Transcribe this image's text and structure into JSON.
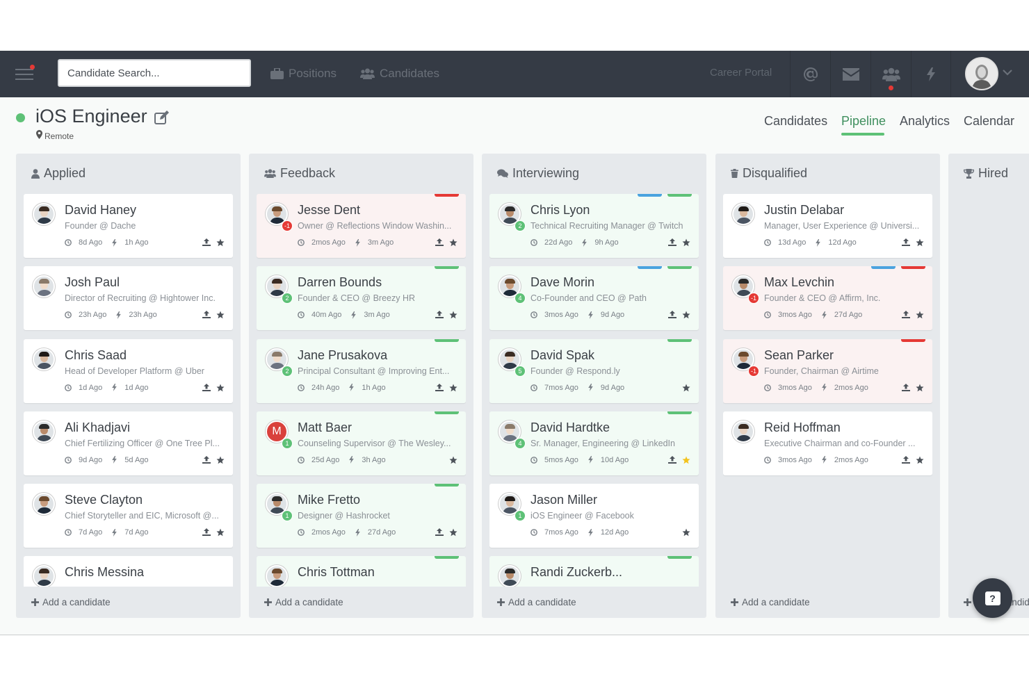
{
  "topbar": {
    "search_placeholder": "Candidate Search...",
    "nav": {
      "positions": "Positions",
      "candidates": "Candidates"
    },
    "career_portal": "Career Portal",
    "icons": [
      "at-icon",
      "envelope-icon",
      "team-icon",
      "bolt-icon"
    ]
  },
  "position": {
    "title": "iOS Engineer",
    "location": "Remote",
    "status_color": "#5ec177"
  },
  "tabs": [
    "Candidates",
    "Pipeline",
    "Analytics",
    "Calendar"
  ],
  "active_tab": "Pipeline",
  "add_label": "Add a candidate",
  "colors": {
    "green_tag": "#5ec177",
    "red_tag": "#e53935",
    "blue_tag": "#4aa3df",
    "dark": "#353b45"
  },
  "columns": [
    {
      "id": "applied",
      "title": "Applied",
      "icon": "user-icon",
      "cards": [
        {
          "name": "David Haney",
          "role": "Founder @ Dache",
          "created": "8d Ago",
          "activity": "1h Ago",
          "bg": "white",
          "tags": [],
          "score": null,
          "upload": true,
          "star": "normal"
        },
        {
          "name": "Josh Paul",
          "role": "Director of Recruiting @ Hightower Inc.",
          "created": "23h Ago",
          "activity": "23h Ago",
          "bg": "white",
          "tags": [],
          "score": null,
          "upload": true,
          "star": "normal"
        },
        {
          "name": "Chris Saad",
          "role": "Head of Developer Platform @ Uber",
          "created": "1d Ago",
          "activity": "1d Ago",
          "bg": "white",
          "tags": [],
          "score": null,
          "upload": true,
          "star": "normal"
        },
        {
          "name": "Ali Khadjavi",
          "role": "Chief Fertilizing Officer @ One Tree Pl...",
          "created": "9d Ago",
          "activity": "5d Ago",
          "bg": "white",
          "tags": [],
          "score": null,
          "upload": true,
          "star": "normal"
        },
        {
          "name": "Steve Clayton",
          "role": "Chief Storyteller and EIC, Microsoft @...",
          "created": "7d Ago",
          "activity": "7d Ago",
          "bg": "white",
          "tags": [],
          "score": null,
          "upload": true,
          "star": "normal"
        },
        {
          "name": "Chris Messina",
          "role": "",
          "created": "",
          "activity": "",
          "bg": "white",
          "tags": [],
          "score": null,
          "upload": true,
          "star": "normal"
        }
      ]
    },
    {
      "id": "feedback",
      "title": "Feedback",
      "icon": "team-icon",
      "cards": [
        {
          "name": "Jesse Dent",
          "role": "Owner @ Reflections Window Washin...",
          "created": "2mos Ago",
          "activity": "3m Ago",
          "bg": "red",
          "tags": [
            "red"
          ],
          "score": "-1",
          "upload": true,
          "star": "normal"
        },
        {
          "name": "Darren Bounds",
          "role": "Founder & CEO @ Breezy HR",
          "created": "40m Ago",
          "activity": "3m Ago",
          "bg": "green",
          "tags": [
            "green"
          ],
          "score": "2",
          "upload": true,
          "star": "normal"
        },
        {
          "name": "Jane Prusakova",
          "role": "Principal Consultant @ Improving Ent...",
          "created": "24h Ago",
          "activity": "1h Ago",
          "bg": "green",
          "tags": [
            "green"
          ],
          "score": "2",
          "upload": true,
          "star": "normal"
        },
        {
          "name": "Matt Baer",
          "role": "Counseling Supervisor @ The Wesley...",
          "created": "25d Ago",
          "activity": "3h Ago",
          "bg": "green",
          "tags": [
            "green"
          ],
          "score": "1",
          "initial": "M",
          "upload": false,
          "star": "normal"
        },
        {
          "name": "Mike Fretto",
          "role": "Designer @ Hashrocket",
          "created": "2mos Ago",
          "activity": "27d Ago",
          "bg": "green",
          "tags": [
            "green"
          ],
          "score": "1",
          "upload": true,
          "star": "normal"
        },
        {
          "name": "Chris Tottman",
          "role": "",
          "created": "",
          "activity": "",
          "bg": "green",
          "tags": [
            "green"
          ],
          "score": null,
          "upload": true,
          "star": "normal"
        }
      ]
    },
    {
      "id": "interviewing",
      "title": "Interviewing",
      "icon": "chat-icon",
      "cards": [
        {
          "name": "Chris Lyon",
          "role": "Technical Recruiting Manager @ Twitch",
          "created": "22d Ago",
          "activity": "9h Ago",
          "bg": "green",
          "tags": [
            "blue",
            "green"
          ],
          "score": "2",
          "upload": true,
          "star": "normal"
        },
        {
          "name": "Dave Morin",
          "role": "Co-Founder and CEO @ Path",
          "created": "3mos Ago",
          "activity": "9d Ago",
          "bg": "green",
          "tags": [
            "blue",
            "green"
          ],
          "score": "4",
          "upload": true,
          "star": "normal"
        },
        {
          "name": "David Spak",
          "role": "Founder @ Respond.ly",
          "created": "7mos Ago",
          "activity": "9d Ago",
          "bg": "green",
          "tags": [
            "green"
          ],
          "score": "5",
          "upload": false,
          "star": "normal"
        },
        {
          "name": "David Hardtke",
          "role": "Sr. Manager, Engineering @ LinkedIn",
          "created": "5mos Ago",
          "activity": "10d Ago",
          "bg": "green",
          "tags": [
            "green"
          ],
          "score": "4",
          "upload": true,
          "star": "gold"
        },
        {
          "name": "Jason Miller",
          "role": "iOS Engineer @ Facebook",
          "created": "7mos Ago",
          "activity": "12d Ago",
          "bg": "white",
          "tags": [],
          "score": "1",
          "upload": false,
          "star": "normal"
        },
        {
          "name": "Randi Zuckerb...",
          "role": "",
          "created": "",
          "activity": "",
          "bg": "green",
          "tags": [
            "green"
          ],
          "score": null,
          "upload": true,
          "star": "normal"
        }
      ]
    },
    {
      "id": "disqualified",
      "title": "Disqualified",
      "icon": "trash-icon",
      "cards": [
        {
          "name": "Justin Delabar",
          "role": "Manager, User Experience @ Universi...",
          "created": "13d Ago",
          "activity": "12d Ago",
          "bg": "white",
          "tags": [],
          "score": null,
          "upload": true,
          "star": "normal"
        },
        {
          "name": "Max Levchin",
          "role": "Founder & CEO @ Affirm, Inc.",
          "created": "3mos Ago",
          "activity": "27d Ago",
          "bg": "red",
          "tags": [
            "blue",
            "red"
          ],
          "score": "-1",
          "upload": true,
          "star": "normal"
        },
        {
          "name": "Sean Parker",
          "role": "Founder, Chairman @ Airtime",
          "created": "3mos Ago",
          "activity": "2mos Ago",
          "bg": "red",
          "tags": [
            "red"
          ],
          "score": "-1",
          "upload": true,
          "star": "normal"
        },
        {
          "name": "Reid Hoffman",
          "role": "Executive Chairman and co-Founder ...",
          "created": "3mos Ago",
          "activity": "2mos Ago",
          "bg": "white",
          "tags": [],
          "score": null,
          "upload": true,
          "star": "normal"
        }
      ]
    },
    {
      "id": "hired",
      "title": "Hired",
      "icon": "trophy-icon",
      "cards": []
    }
  ]
}
